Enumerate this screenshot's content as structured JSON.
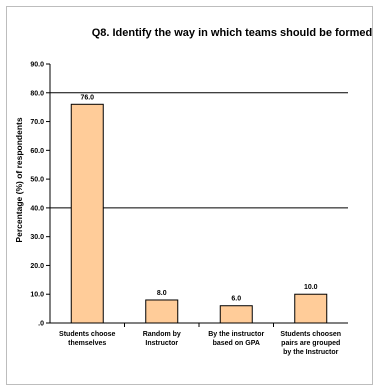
{
  "chart_data": {
    "type": "bar",
    "title": "Q8. Identify the way in which teams should be formed",
    "xlabel": "",
    "ylabel": "Percentage (%) of respondents",
    "ylim": [
      0,
      90
    ],
    "ytick_step": 10,
    "ytick_labels": [
      ".0",
      "10.0",
      "20.0",
      "30.0",
      "40.0",
      "50.0",
      "60.0",
      "70.0",
      "80.0",
      "90.0"
    ],
    "gridlines": [
      40,
      80
    ],
    "grid": true,
    "categories": [
      [
        "Students choose",
        "themselves"
      ],
      [
        "Random by",
        "Instructor"
      ],
      [
        "By the instructor",
        "based on GPA"
      ],
      [
        "Students choosen",
        "pairs are grouped",
        "by the Instructor"
      ]
    ],
    "values": [
      76.0,
      8.0,
      6.0,
      10.0
    ],
    "data_labels": [
      "76.0",
      "8.0",
      "6.0",
      "10.0"
    ],
    "colors": {
      "bar_fill": "#ffcc99",
      "bar_stroke": "#000000",
      "gridline": "#000000",
      "axis": "#000000"
    }
  }
}
